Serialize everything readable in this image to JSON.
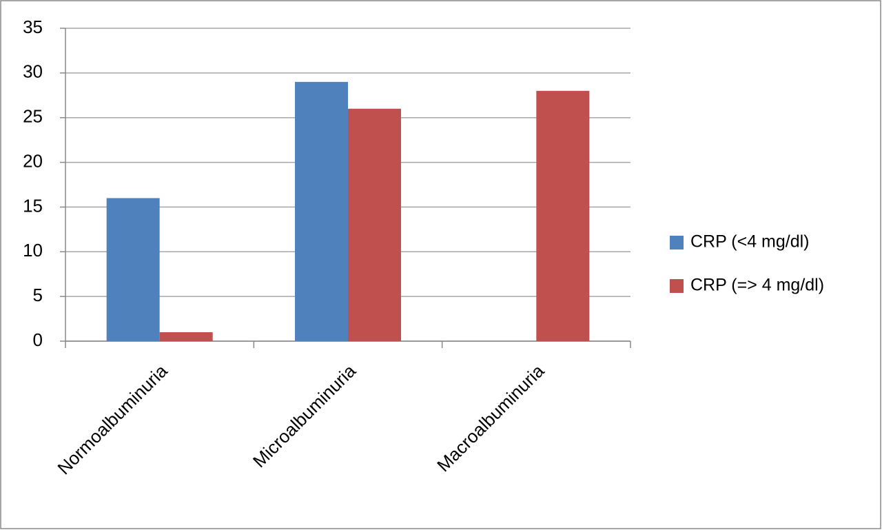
{
  "chart_data": {
    "type": "bar",
    "categories": [
      "Normoalbuminuria",
      "Microalbuminuria",
      "Macroalbuminuria"
    ],
    "series": [
      {
        "name": "CRP (<4 mg/dl)",
        "color": "#4f81bd",
        "values": [
          16,
          29,
          0
        ]
      },
      {
        "name": "CRP (=> 4 mg/dl)",
        "color": "#c0504d",
        "values": [
          1,
          26,
          28
        ]
      }
    ],
    "ylim": [
      0,
      35
    ],
    "yticks": [
      0,
      5,
      10,
      15,
      20,
      25,
      30,
      35
    ],
    "grid": true,
    "legend": "right"
  }
}
